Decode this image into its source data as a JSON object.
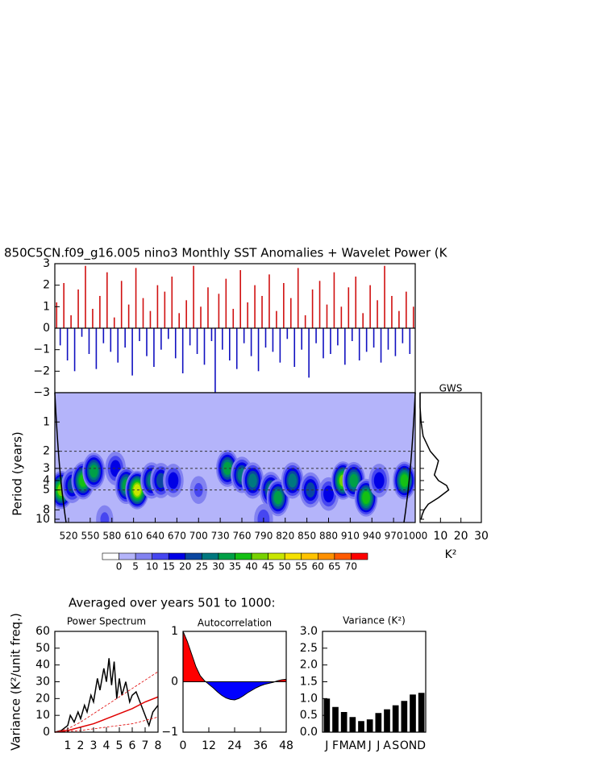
{
  "heading": "Averaged over years 501 to 1000:",
  "chart_data": [
    {
      "type": "signed_bar",
      "title": "850C5CN.f09_g16.005 nino3 Monthly SST Anomalies + Wavelet Power (K",
      "xlim": [
        501,
        1000
      ],
      "ylim": [
        -3,
        3
      ],
      "yticks": [
        {
          "value": -3,
          "label": "−3"
        },
        {
          "value": -2,
          "label": "−2"
        },
        {
          "value": -1,
          "label": "−1"
        },
        0,
        1,
        2,
        3
      ],
      "color_positive": "#d01010",
      "color_negative": "#1010c0",
      "values": [
        1.2,
        -0.8,
        2.1,
        -1.5,
        0.6,
        -2.0,
        1.8,
        -0.4,
        2.9,
        -1.2,
        0.9,
        -1.9,
        1.5,
        -0.7,
        2.6,
        -1.1,
        0.5,
        -1.6,
        2.2,
        -0.9,
        1.1,
        -2.2,
        2.8,
        -0.6,
        1.4,
        -1.3,
        0.8,
        -1.8,
        2.0,
        -1.0,
        1.7,
        -0.5,
        2.4,
        -1.4,
        0.7,
        -2.1,
        1.3,
        -0.8,
        2.9,
        -1.2,
        1.0,
        -1.7,
        1.9,
        -0.6,
        -3.0,
        1.6,
        -1.0,
        2.3,
        -1.5,
        0.9,
        -1.9,
        2.7,
        -0.7,
        1.2,
        -1.3,
        2.0,
        -2.0,
        1.5,
        -0.9,
        2.5,
        -1.1,
        0.8,
        -1.6,
        2.1,
        -0.5,
        1.4,
        -1.8,
        2.8,
        -1.0,
        0.6,
        -2.3,
        1.8,
        -0.7,
        2.2,
        -1.4,
        1.1,
        -1.2,
        2.6,
        -0.8,
        1.0,
        -1.7,
        1.9,
        -0.6,
        2.4,
        -1.5,
        0.7,
        -1.1,
        2.0,
        -0.9,
        1.3,
        -1.6,
        2.9,
        -1.0,
        1.5,
        -1.3,
        0.8,
        -0.7,
        1.7,
        -1.2,
        1.0
      ]
    },
    {
      "type": "wavelet",
      "y_label": "Period (years)",
      "log_y": true,
      "xlim": [
        501,
        1000
      ],
      "ylim": [
        0.5,
        10.8
      ],
      "xticks": [
        520,
        550,
        580,
        610,
        640,
        670,
        700,
        730,
        760,
        790,
        820,
        850,
        880,
        910,
        940,
        970,
        1000
      ],
      "yticks": [
        1,
        2,
        3,
        4,
        5,
        8,
        10
      ],
      "reference_periods": [
        2,
        3,
        5
      ],
      "x": [
        510,
        525,
        540,
        555,
        585,
        600,
        615,
        635,
        648,
        665,
        740,
        760,
        775,
        800,
        810,
        830,
        855,
        880,
        900,
        915,
        932,
        950,
        985,
        790,
        570,
        700
      ],
      "periods": [
        5,
        4.5,
        4,
        3.2,
        3,
        4.5,
        5,
        4,
        4,
        4,
        3,
        3.5,
        4,
        5,
        6,
        4,
        5,
        5.5,
        4,
        4,
        6,
        4,
        4,
        10,
        10,
        5
      ],
      "power": [
        45,
        25,
        40,
        35,
        20,
        35,
        50,
        30,
        25,
        20,
        35,
        30,
        30,
        30,
        35,
        30,
        25,
        20,
        45,
        35,
        40,
        20,
        40,
        15,
        12,
        12
      ],
      "levels": [
        0,
        5,
        10,
        15,
        20,
        25,
        30,
        35,
        40,
        45,
        50,
        55,
        60,
        65,
        70
      ],
      "level_colors": [
        "#ffffff",
        "#b4b4fa",
        "#8282f0",
        "#4646f0",
        "#0000e6",
        "#0a46a0",
        "#00787f",
        "#00a046",
        "#14c014",
        "#78d200",
        "#c8e600",
        "#f5e100",
        "#ffc300",
        "#ff9100",
        "#ff5a00",
        "#ff0000"
      ]
    },
    {
      "type": "line",
      "title": "GWS",
      "x_label": "K²",
      "log_y": true,
      "xlim": [
        0,
        30
      ],
      "xticks": [
        10,
        20,
        30
      ],
      "ylim": [
        0.5,
        10.8
      ],
      "periods": [
        0.5,
        0.7,
        1,
        1.4,
        2,
        2.5,
        3,
        3.5,
        4,
        4.5,
        5,
        6,
        7,
        8,
        9,
        10
      ],
      "values": [
        0,
        0,
        0.5,
        1.5,
        5,
        9,
        8,
        7,
        9,
        13,
        14,
        9,
        4,
        2,
        1,
        0.5
      ],
      "color": "#000000"
    },
    {
      "type": "line",
      "title": "Power Spectrum",
      "y_label": "Variance (K²/unit freq.)",
      "xlim": [
        0,
        8
      ],
      "ylim": [
        0,
        60
      ],
      "xticks": [
        1,
        2,
        3,
        4,
        5,
        6,
        7,
        8
      ],
      "yticks": [
        0,
        10,
        20,
        30,
        40,
        50,
        60
      ],
      "series": [
        {
          "color": "#000000",
          "style": "solid",
          "x": [
            0,
            0.5,
            1,
            1.2,
            1.5,
            1.8,
            2,
            2.3,
            2.5,
            2.8,
            3,
            3.3,
            3.5,
            3.8,
            4,
            4.2,
            4.4,
            4.6,
            4.8,
            5,
            5.2,
            5.5,
            5.8,
            6,
            6.3,
            6.6,
            7,
            7.3,
            7.6,
            8
          ],
          "values": [
            0,
            1,
            4,
            10,
            6,
            12,
            8,
            16,
            12,
            22,
            18,
            32,
            25,
            38,
            30,
            44,
            28,
            42,
            20,
            32,
            22,
            30,
            18,
            22,
            24,
            18,
            10,
            4,
            12,
            16
          ]
        },
        {
          "color": "#e00000",
          "style": "solid",
          "x": [
            0,
            1,
            2,
            3,
            4,
            5,
            6,
            7,
            8
          ],
          "values": [
            0,
            1,
            3,
            5,
            8,
            11,
            14,
            18,
            21
          ]
        },
        {
          "color": "#e00000",
          "style": "dashed",
          "x": [
            0,
            1,
            2,
            3,
            4,
            5,
            6,
            7,
            8
          ],
          "values": [
            0,
            2,
            6,
            11,
            16,
            21,
            26,
            31,
            36
          ]
        },
        {
          "color": "#e00000",
          "style": "dashed",
          "x": [
            0,
            1,
            2,
            3,
            4,
            5,
            6,
            7,
            8
          ],
          "values": [
            0,
            0.5,
            1,
            2,
            3,
            4,
            5,
            7,
            9
          ]
        }
      ]
    },
    {
      "type": "area",
      "title": "Autocorrelation",
      "xlim": [
        0,
        48
      ],
      "ylim": [
        -1,
        1
      ],
      "xticks": [
        0,
        12,
        24,
        36,
        48
      ],
      "yticks": [
        {
          "value": -1,
          "label": "−1"
        },
        0,
        1
      ],
      "color_positive": "#ff0000",
      "color_negative": "#0000ff",
      "x": [
        0,
        2,
        4,
        6,
        8,
        10,
        12,
        14,
        16,
        18,
        20,
        22,
        24,
        26,
        28,
        30,
        32,
        34,
        36,
        38,
        40,
        42,
        44,
        46,
        48
      ],
      "values": [
        1,
        0.8,
        0.55,
        0.3,
        0.12,
        0.02,
        -0.05,
        -0.12,
        -0.2,
        -0.27,
        -0.32,
        -0.35,
        -0.36,
        -0.33,
        -0.28,
        -0.22,
        -0.17,
        -0.12,
        -0.08,
        -0.05,
        -0.03,
        -0.01,
        0.02,
        0.04,
        0.05
      ]
    },
    {
      "type": "bar",
      "title": "Variance (K²)",
      "ylim": [
        0,
        3
      ],
      "yticks": [
        {
          "value": 0,
          "label": "0.0"
        },
        {
          "value": 0.5,
          "label": "0.5"
        },
        {
          "value": 1,
          "label": "1.0"
        },
        {
          "value": 1.5,
          "label": "1.5"
        },
        {
          "value": 2,
          "label": "2.0"
        },
        {
          "value": 2.5,
          "label": "2.5"
        },
        {
          "value": 3,
          "label": "3.0"
        }
      ],
      "categories": [
        "J",
        "F",
        "M",
        "A",
        "M",
        "J",
        "J",
        "A",
        "S",
        "O",
        "N",
        "D"
      ],
      "values": [
        1.0,
        0.75,
        0.6,
        0.45,
        0.33,
        0.38,
        0.57,
        0.68,
        0.8,
        0.93,
        1.12,
        1.17
      ],
      "color": "#000000"
    }
  ]
}
